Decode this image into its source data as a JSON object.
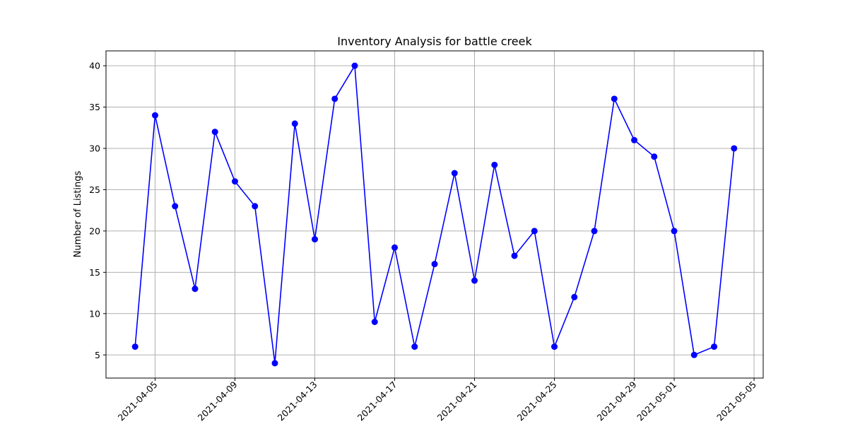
{
  "chart_data": {
    "type": "line",
    "title": "Inventory Analysis for battle creek",
    "xlabel": "",
    "ylabel": "Number of Listings",
    "x": [
      "2021-04-04",
      "2021-04-05",
      "2021-04-06",
      "2021-04-07",
      "2021-04-08",
      "2021-04-09",
      "2021-04-10",
      "2021-04-11",
      "2021-04-12",
      "2021-04-13",
      "2021-04-14",
      "2021-04-15",
      "2021-04-16",
      "2021-04-17",
      "2021-04-18",
      "2021-04-19",
      "2021-04-20",
      "2021-04-21",
      "2021-04-22",
      "2021-04-23",
      "2021-04-24",
      "2021-04-25",
      "2021-04-26",
      "2021-04-27",
      "2021-04-28",
      "2021-04-29",
      "2021-04-30",
      "2021-05-01",
      "2021-05-02",
      "2021-05-03",
      "2021-05-04"
    ],
    "series": [
      {
        "color": "#0000ff",
        "values": [
          6,
          34,
          23,
          13,
          32,
          26,
          23,
          4,
          33,
          19,
          36,
          40,
          9,
          18,
          6,
          16,
          27,
          14,
          28,
          17,
          20,
          6,
          12,
          20,
          36,
          31,
          29,
          20,
          5,
          6,
          30
        ]
      }
    ],
    "xticks": [
      "2021-04-05",
      "2021-04-09",
      "2021-04-13",
      "2021-04-17",
      "2021-04-21",
      "2021-04-25",
      "2021-04-29",
      "2021-05-01",
      "2021-05-05"
    ],
    "yticks": [
      5,
      10,
      15,
      20,
      25,
      30,
      35,
      40
    ],
    "xlim": [
      "2021-04-02 13:00",
      "2021-05-05 11:00"
    ],
    "ylim": [
      2.2,
      41.8
    ],
    "grid": true,
    "legend": "none"
  }
}
